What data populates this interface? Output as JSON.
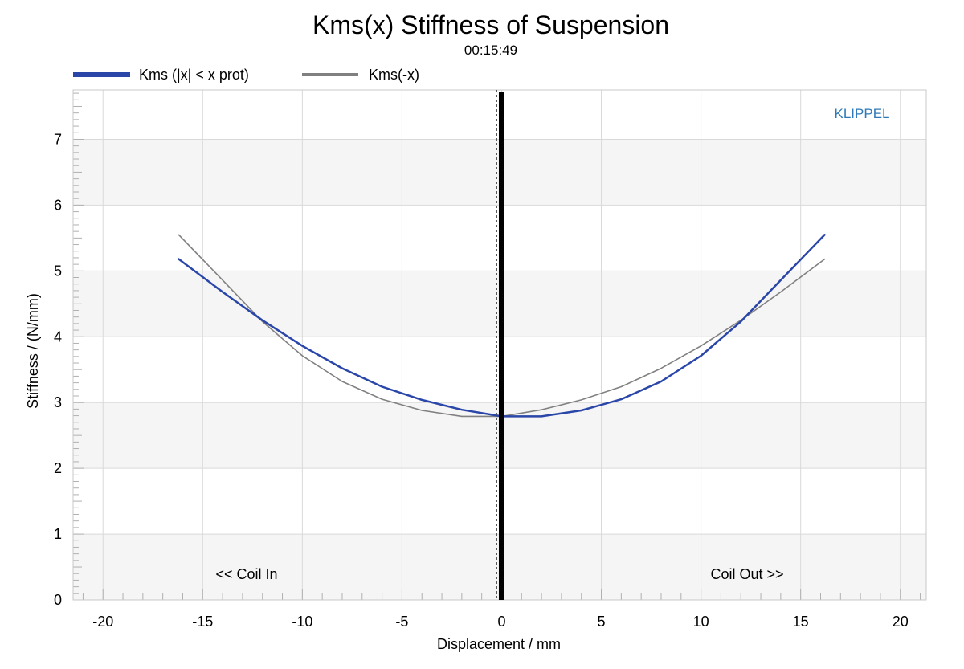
{
  "chart_data": {
    "type": "line",
    "title": "Kms(x) Stiffness of Suspension",
    "subtitle": "00:15:49",
    "xlabel": "Displacement / mm",
    "ylabel": "Stiffness / (N/mm)",
    "xlim": [
      -21.5,
      21.3
    ],
    "ylim": [
      0,
      7.75
    ],
    "xticks": [
      -20,
      -15,
      -10,
      -5,
      0,
      5,
      10,
      15,
      20
    ],
    "yticks": [
      0,
      1,
      2,
      3,
      4,
      5,
      6,
      7
    ],
    "grid": true,
    "legend_position": "top-left",
    "watermark": "KLIPPEL",
    "annotations": [
      "<< Coil In",
      "Coil Out >>"
    ],
    "marker_line_x": 0,
    "series": [
      {
        "name": "Kms (|x| < x prot)",
        "color": "#2a46a8",
        "x": [
          -16.2,
          -14,
          -12,
          -10,
          -8,
          -6,
          -4,
          -2,
          0,
          2,
          4,
          6,
          8,
          10,
          12,
          14,
          16.2
        ],
        "y": [
          5.18,
          4.68,
          4.25,
          3.86,
          3.52,
          3.24,
          3.04,
          2.89,
          2.79,
          2.79,
          2.88,
          3.05,
          3.32,
          3.71,
          4.23,
          4.86,
          5.55
        ]
      },
      {
        "name": "Kms(-x)",
        "color": "#808080",
        "x": [
          -16.2,
          -14,
          -12,
          -10,
          -8,
          -6,
          -4,
          -2,
          0,
          2,
          4,
          6,
          8,
          10,
          12,
          14,
          16.2
        ],
        "y": [
          5.55,
          4.86,
          4.23,
          3.71,
          3.32,
          3.05,
          2.88,
          2.79,
          2.79,
          2.89,
          3.04,
          3.24,
          3.52,
          3.86,
          4.25,
          4.68,
          5.18
        ]
      }
    ]
  },
  "colors": {
    "band": "#f5f5f5",
    "grid": "#d9d9d9",
    "frame": "#c8c8c8",
    "brand": "#2e7ab8"
  }
}
